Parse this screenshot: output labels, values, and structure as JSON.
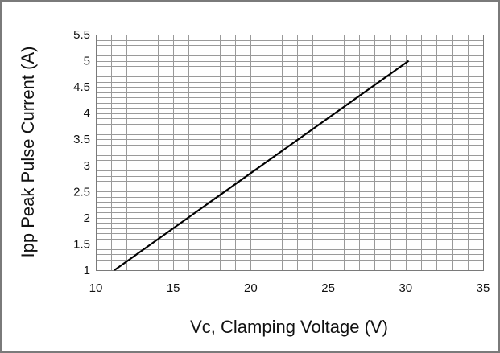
{
  "chart_data": {
    "type": "line",
    "title": "",
    "xlabel": "Vc, Clamping Voltage (V)",
    "ylabel": "Ipp Peak Pulse Current (A)",
    "xlim": [
      10,
      35
    ],
    "ylim": [
      1,
      5.5
    ],
    "x_ticks": [
      "10",
      "15",
      "20",
      "25",
      "30",
      "35"
    ],
    "y_ticks": [
      "1",
      "1.5",
      "2",
      "2.5",
      "3",
      "3.5",
      "4",
      "4.5",
      "5",
      "5.5"
    ],
    "grid": true,
    "legend": "none",
    "series": [
      {
        "x": [
          11.2,
          30.2
        ],
        "y": [
          1,
          5
        ]
      }
    ],
    "colors": {
      "line": "#000000",
      "grid": "#9a9a9a",
      "frame": "#7a7a7a"
    }
  }
}
